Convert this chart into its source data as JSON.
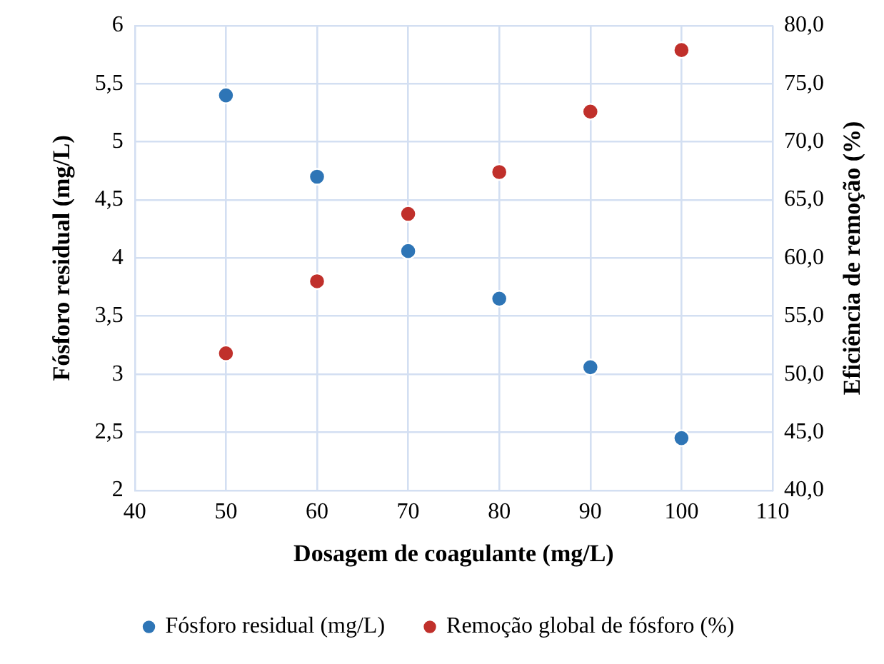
{
  "chart_data": {
    "type": "scatter",
    "xlabel": "Dosagem de coagulante (mg/L)",
    "ylabel": "Fósforo residual (mg/L)",
    "y2label": "Eficiência de remoção (%)",
    "x": [
      50,
      60,
      70,
      80,
      90,
      100
    ],
    "series": [
      {
        "name": "Fósforo residual (mg/L)",
        "color": "#2e75b6",
        "values": [
          5.4,
          4.7,
          4.06,
          3.65,
          3.06,
          2.45
        ]
      },
      {
        "name": "Remoção global de fósforo (%)",
        "color": "#c0302b",
        "axis": "y2",
        "values": [
          51.8,
          58.0,
          63.8,
          67.4,
          72.6,
          77.9
        ]
      }
    ],
    "xlim": [
      40,
      110
    ],
    "xticks": [
      40,
      50,
      60,
      70,
      80,
      90,
      100,
      110
    ],
    "ylim": [
      2,
      6
    ],
    "yticks": [
      2,
      {
        "value": 2.5,
        "label": "2,5"
      },
      3,
      {
        "value": 3.5,
        "label": "3,5"
      },
      4,
      {
        "value": 4.5,
        "label": "4,5"
      },
      5,
      {
        "value": 5.5,
        "label": "5,5"
      },
      6
    ],
    "y2lim": [
      40,
      80
    ],
    "y2ticks": [
      {
        "value": 40,
        "label": "40,0"
      },
      {
        "value": 45,
        "label": "45,0"
      },
      {
        "value": 50,
        "label": "50,0"
      },
      {
        "value": 55,
        "label": "55,0"
      },
      {
        "value": 60,
        "label": "60,0"
      },
      {
        "value": 65,
        "label": "65,0"
      },
      {
        "value": 70,
        "label": "70,0"
      },
      {
        "value": 75,
        "label": "75,0"
      },
      {
        "value": 80,
        "label": "80,0"
      }
    ],
    "grid": true,
    "legend": "bottom",
    "marker": "circle"
  }
}
